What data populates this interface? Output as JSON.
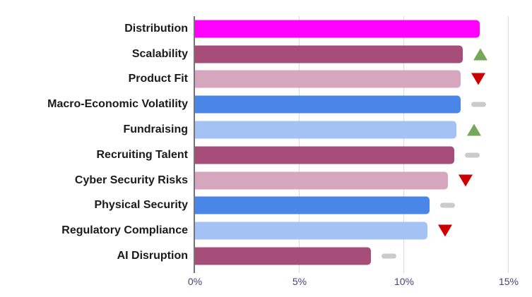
{
  "chart_data": {
    "type": "bar",
    "orientation": "horizontal",
    "title": "",
    "categories": [
      "Distribution",
      "Scalability",
      "Product Fit",
      "Macro-Economic Volatility",
      "Fundraising",
      "Recruiting Talent",
      "Cyber Security Risks",
      "Physical Security",
      "Regulatory Compliance",
      "AI Disruption"
    ],
    "values": [
      13.6,
      12.8,
      12.7,
      12.7,
      12.5,
      12.4,
      12.1,
      11.2,
      11.1,
      8.4
    ],
    "value_unit": "%",
    "bar_colors": [
      "#FF00FF",
      "#A64D79",
      "#D5A6BD",
      "#4A86E8",
      "#A4C2F4",
      "#A64D79",
      "#D5A6BD",
      "#4A86E8",
      "#A4C2F4",
      "#A64D79"
    ],
    "trend_markers": [
      "none",
      "up",
      "down",
      "neutral",
      "up",
      "neutral",
      "down",
      "neutral",
      "down",
      "neutral"
    ],
    "x_axis": {
      "tick_labels": [
        "0%",
        "5%",
        "10%",
        "15%"
      ],
      "min": 0,
      "max": 15,
      "grid": true
    },
    "legend_position": "none"
  },
  "styles": {
    "marker_up_color": "#76A65C",
    "marker_down_color": "#CC0000",
    "marker_neutral_color": "#CBCBCB",
    "axis_line_color": "#757575",
    "grid_color": "#DADADA",
    "tick_label_color": "#473F77",
    "category_label_color": "#1A1A1A",
    "background_color": "#FFFFFF"
  }
}
